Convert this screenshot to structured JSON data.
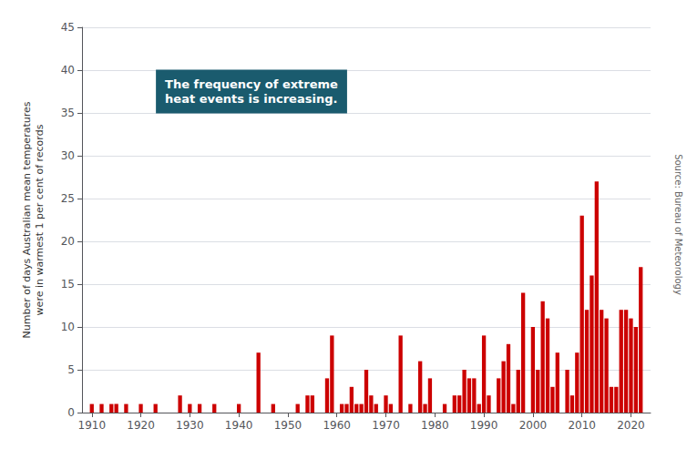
{
  "chart_data": {
    "type": "bar",
    "x": [
      1910,
      1911,
      1912,
      1913,
      1914,
      1915,
      1916,
      1917,
      1918,
      1919,
      1920,
      1921,
      1922,
      1923,
      1924,
      1925,
      1926,
      1927,
      1928,
      1929,
      1930,
      1931,
      1932,
      1933,
      1934,
      1935,
      1936,
      1937,
      1938,
      1939,
      1940,
      1941,
      1942,
      1943,
      1944,
      1945,
      1946,
      1947,
      1948,
      1949,
      1950,
      1951,
      1952,
      1953,
      1954,
      1955,
      1956,
      1957,
      1958,
      1959,
      1960,
      1961,
      1962,
      1963,
      1964,
      1965,
      1966,
      1967,
      1968,
      1969,
      1970,
      1971,
      1972,
      1973,
      1974,
      1975,
      1976,
      1977,
      1978,
      1979,
      1980,
      1981,
      1982,
      1983,
      1984,
      1985,
      1986,
      1987,
      1988,
      1989,
      1990,
      1991,
      1992,
      1993,
      1994,
      1995,
      1996,
      1997,
      1998,
      1999,
      2000,
      2001,
      2002,
      2003,
      2004,
      2005,
      2006,
      2007,
      2008,
      2009,
      2010,
      2011,
      2012,
      2013,
      2014,
      2015,
      2016,
      2017,
      2018,
      2019,
      2020,
      2021,
      2022
    ],
    "values": [
      1,
      0,
      1,
      0,
      1,
      1,
      0,
      1,
      0,
      0,
      1,
      0,
      0,
      1,
      0,
      0,
      0,
      0,
      2,
      0,
      1,
      0,
      1,
      0,
      0,
      1,
      0,
      0,
      0,
      0,
      1,
      0,
      0,
      0,
      7,
      0,
      0,
      1,
      0,
      0,
      0,
      0,
      1,
      0,
      2,
      2,
      0,
      0,
      4,
      9,
      0,
      1,
      1,
      3,
      1,
      1,
      5,
      2,
      1,
      0,
      2,
      1,
      0,
      9,
      0,
      1,
      0,
      6,
      1,
      4,
      0,
      0,
      1,
      0,
      2,
      2,
      5,
      4,
      4,
      1,
      9,
      2,
      0,
      4,
      6,
      8,
      1,
      5,
      14,
      0,
      10,
      5,
      13,
      11,
      3,
      7,
      0,
      5,
      2,
      7,
      23,
      12,
      16,
      27,
      12,
      11,
      3,
      3,
      12,
      12,
      11,
      10,
      17
    ],
    "color": "#cc0000",
    "xlim": [
      1908,
      2024
    ],
    "xticks": [
      1910,
      1920,
      1930,
      1940,
      1950,
      1960,
      1970,
      1980,
      1990,
      2000,
      2010,
      2020
    ],
    "ylim": [
      0,
      45
    ],
    "yticks": [
      0,
      5,
      10,
      15,
      20,
      25,
      30,
      35,
      40,
      45
    ],
    "ylabel": "Number of days Australian mean temperatures\nwere in warmest 1 per cent of records",
    "annotation": "The frequency of extreme\nheat events is increasing.",
    "source": "Source: Bureau of Meteorology",
    "grid": true
  }
}
